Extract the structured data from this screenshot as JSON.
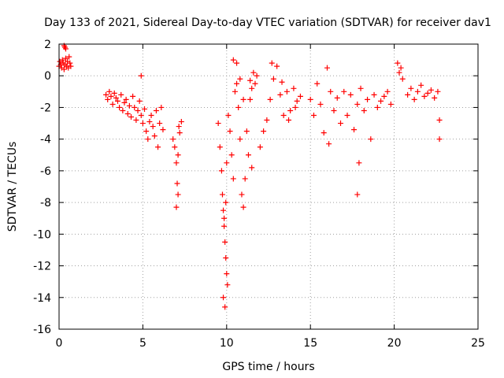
{
  "chart_data": {
    "type": "scatter",
    "title": "Day 133 of 2021, Sidereal Day-to-day VTEC variation (SDTVAR) for receiver dav1",
    "xlabel": "GPS time / hours",
    "ylabel": "SDTVAR / TECUs",
    "xlim": [
      0,
      25
    ],
    "ylim": [
      -16,
      2
    ],
    "xticks": [
      0,
      5,
      10,
      15,
      20,
      25
    ],
    "xtick_labels": [
      "0",
      "5",
      "10",
      "15",
      "20",
      "25"
    ],
    "yticks": [
      2,
      0,
      -2,
      -4,
      -6,
      -8,
      -10,
      -12,
      -14,
      -16
    ],
    "ytick_labels": [
      "2",
      "0",
      "-2",
      "-4",
      "-6",
      "-8",
      "-10",
      "-12",
      "-14",
      "-16"
    ],
    "grid": true,
    "marker": "plus",
    "color": "#ff0000",
    "series": [
      {
        "name": "SDTVAR",
        "x": [
          0.0,
          0.05,
          0.1,
          0.15,
          0.2,
          0.25,
          0.3,
          0.35,
          0.4,
          0.45,
          0.5,
          0.55,
          0.6,
          0.65,
          0.7,
          0.3,
          0.35,
          0.4,
          2.8,
          2.9,
          3.0,
          3.1,
          3.2,
          3.3,
          3.4,
          3.5,
          3.6,
          3.7,
          3.8,
          3.9,
          4.0,
          4.1,
          4.2,
          4.3,
          4.4,
          4.5,
          4.6,
          4.7,
          4.8,
          4.9,
          5.0,
          5.1,
          4.9,
          5.2,
          5.3,
          5.4,
          5.5,
          5.6,
          5.7,
          5.8,
          5.9,
          6.0,
          6.1,
          6.2,
          6.8,
          6.9,
          7.0,
          7.05,
          7.1,
          7.15,
          7.2,
          7.3,
          7.0,
          7.1,
          9.5,
          9.6,
          9.7,
          9.75,
          9.8,
          9.85,
          9.9,
          9.95,
          10.0,
          10.05,
          9.8,
          9.9,
          9.85,
          9.95,
          10.0,
          10.1,
          10.2,
          10.3,
          10.4,
          10.5,
          10.6,
          10.7,
          10.8,
          10.9,
          11.0,
          11.1,
          11.2,
          11.3,
          11.4,
          11.5,
          11.6,
          11.7,
          11.8,
          10.4,
          10.6,
          10.8,
          11.0,
          11.4,
          11.5,
          12.0,
          12.2,
          12.4,
          12.6,
          12.8,
          13.0,
          13.2,
          13.4,
          13.6,
          13.8,
          14.0,
          14.2,
          14.4,
          12.7,
          13.3,
          13.7,
          14.1,
          15.0,
          15.2,
          15.4,
          15.6,
          15.8,
          16.0,
          16.2,
          16.4,
          16.6,
          16.8,
          17.0,
          17.2,
          17.4,
          17.6,
          17.8,
          18.0,
          18.2,
          18.4,
          18.6,
          18.8,
          19.0,
          19.2,
          19.4,
          19.6,
          19.8,
          17.9,
          17.8,
          16.1,
          20.2,
          20.3,
          20.4,
          20.5,
          20.8,
          21.0,
          21.2,
          21.4,
          21.6,
          21.8,
          22.0,
          22.2,
          22.4,
          22.6,
          22.7,
          22.7
        ],
        "y": [
          0.6,
          0.9,
          0.7,
          0.5,
          1.0,
          0.8,
          0.4,
          0.7,
          1.1,
          0.6,
          0.9,
          0.5,
          1.2,
          0.8,
          0.6,
          1.9,
          1.8,
          1.7,
          -1.2,
          -1.5,
          -1.0,
          -1.3,
          -1.8,
          -1.1,
          -1.4,
          -1.6,
          -2.0,
          -1.2,
          -2.2,
          -1.7,
          -1.5,
          -2.4,
          -1.9,
          -2.6,
          -1.3,
          -2.0,
          -2.8,
          -2.2,
          -1.6,
          -2.5,
          -3.0,
          -2.1,
          0.0,
          -3.5,
          -4.0,
          -2.9,
          -2.5,
          -3.2,
          -3.8,
          -2.2,
          -4.5,
          -3.0,
          -2.0,
          -3.4,
          -4.0,
          -4.5,
          -5.5,
          -6.8,
          -7.5,
          -3.2,
          -3.6,
          -2.9,
          -8.3,
          -5.0,
          -3.0,
          -4.5,
          -6.0,
          -7.5,
          -8.5,
          -9.5,
          -10.5,
          -11.5,
          -12.5,
          -13.2,
          -14.0,
          -14.6,
          -9.0,
          -8.0,
          -5.5,
          -2.5,
          -3.5,
          -5.0,
          -6.5,
          -1.0,
          0.8,
          -2.0,
          -4.0,
          -7.5,
          -8.3,
          -6.5,
          -3.5,
          -5.0,
          -1.5,
          -0.8,
          0.2,
          -0.5,
          0.0,
          1.0,
          -0.5,
          -0.2,
          -1.5,
          -0.3,
          -5.8,
          -4.5,
          -3.5,
          -2.8,
          -1.5,
          -0.2,
          0.6,
          -1.2,
          -2.5,
          -1.0,
          -2.2,
          -0.8,
          -1.6,
          -1.3,
          0.8,
          -0.4,
          -2.8,
          -2.0,
          -1.5,
          -2.5,
          -0.5,
          -1.8,
          -3.6,
          0.5,
          -1.0,
          -2.2,
          -1.4,
          -3.0,
          -1.0,
          -2.5,
          -1.2,
          -3.4,
          -1.8,
          -0.8,
          -2.2,
          -1.5,
          -4.0,
          -1.2,
          -2.0,
          -1.6,
          -1.3,
          -1.0,
          -1.8,
          -5.5,
          -7.5,
          -4.3,
          0.8,
          0.2,
          0.5,
          -0.2,
          -1.2,
          -0.8,
          -1.5,
          -1.0,
          -0.6,
          -1.3,
          -1.1,
          -0.9,
          -1.4,
          -1.0,
          -2.8,
          -4.0
        ]
      }
    ]
  }
}
